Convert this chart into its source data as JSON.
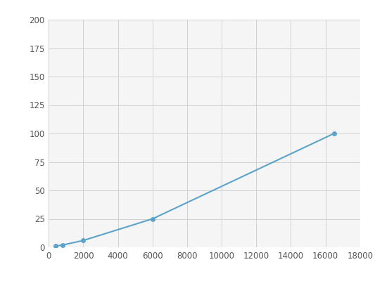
{
  "x": [
    400,
    800,
    2000,
    6000,
    16500
  ],
  "y": [
    1,
    2,
    6,
    25,
    100
  ],
  "line_color": "#5ba3c9",
  "marker_color": "#5ba3c9",
  "marker_size": 5,
  "line_width": 1.5,
  "xlim": [
    0,
    18000
  ],
  "ylim": [
    0,
    200
  ],
  "xticks": [
    0,
    2000,
    4000,
    6000,
    8000,
    10000,
    12000,
    14000,
    16000,
    18000
  ],
  "yticks": [
    0,
    25,
    50,
    75,
    100,
    125,
    150,
    175,
    200
  ],
  "grid_color": "#d0d0d0",
  "background_color": "#f5f5f5",
  "fig_background": "#ffffff",
  "tick_fontsize": 8.5,
  "tick_color": "#555555"
}
